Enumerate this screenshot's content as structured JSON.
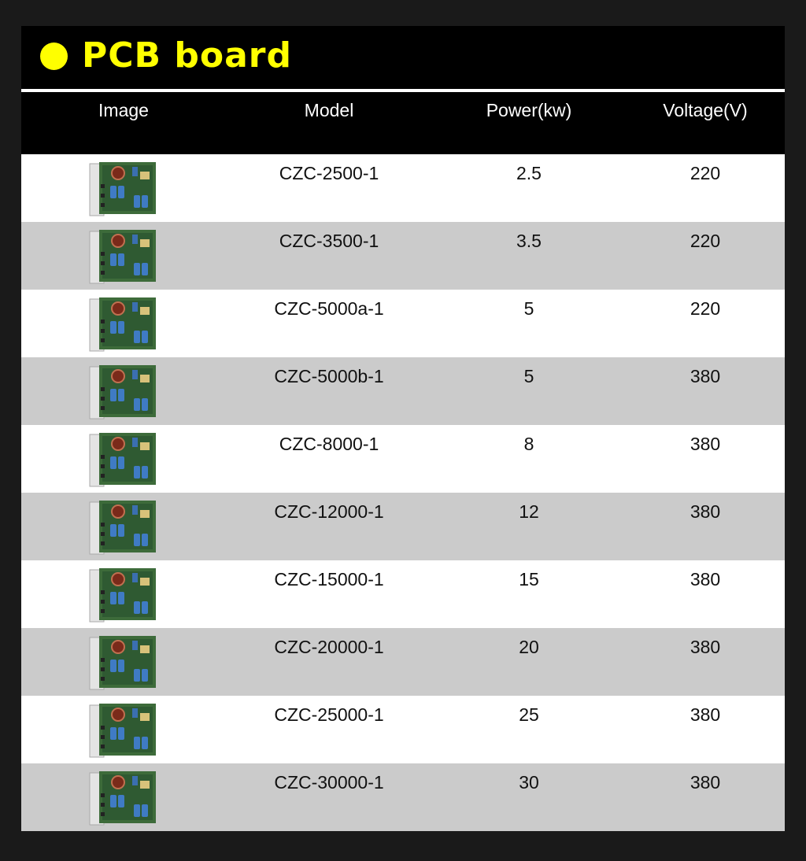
{
  "title": "PCB board",
  "colors": {
    "accent": "#ffff00",
    "header_bg": "#000000",
    "row_alt": "#cbcbcb"
  },
  "columns": [
    "Image",
    "Model",
    "Power(kw)",
    "Voltage(V)"
  ],
  "rows": [
    {
      "image": "pcb-board-photo",
      "model": "CZC-2500-1",
      "power": "2.5",
      "voltage": "220"
    },
    {
      "image": "pcb-board-photo",
      "model": "CZC-3500-1",
      "power": "3.5",
      "voltage": "220"
    },
    {
      "image": "pcb-board-photo",
      "model": "CZC-5000a-1",
      "power": "5",
      "voltage": "220"
    },
    {
      "image": "pcb-board-photo",
      "model": "CZC-5000b-1",
      "power": "5",
      "voltage": "380"
    },
    {
      "image": "pcb-board-photo",
      "model": "CZC-8000-1",
      "power": "8",
      "voltage": "380"
    },
    {
      "image": "pcb-board-photo",
      "model": "CZC-12000-1",
      "power": "12",
      "voltage": "380"
    },
    {
      "image": "pcb-board-photo",
      "model": "CZC-15000-1",
      "power": "15",
      "voltage": "380"
    },
    {
      "image": "pcb-board-photo",
      "model": "CZC-20000-1",
      "power": "20",
      "voltage": "380"
    },
    {
      "image": "pcb-board-photo",
      "model": "CZC-25000-1",
      "power": "25",
      "voltage": "380"
    },
    {
      "image": "pcb-board-photo",
      "model": "CZC-30000-1",
      "power": "30",
      "voltage": "380"
    }
  ]
}
